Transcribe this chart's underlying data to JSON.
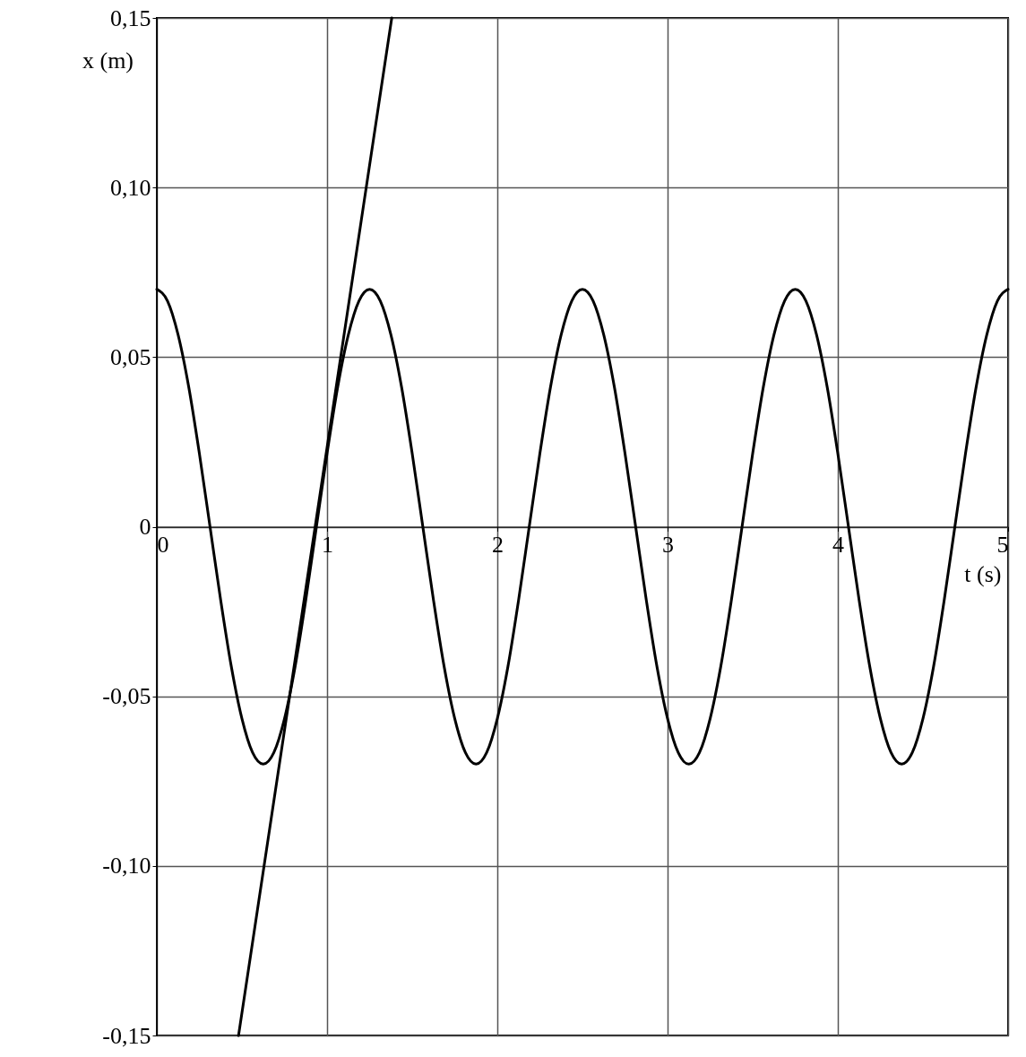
{
  "chart_data": {
    "type": "line",
    "xlabel": "t (s)",
    "ylabel": "x (m)",
    "xlim": [
      0,
      5
    ],
    "ylim": [
      -0.15,
      0.15
    ],
    "xticks": [
      0,
      1,
      2,
      3,
      4,
      5
    ],
    "yticks": [
      {
        "value": -0.15,
        "label": "-0,15"
      },
      {
        "value": -0.1,
        "label": "-0,10"
      },
      {
        "value": -0.05,
        "label": "-0,05"
      },
      0,
      {
        "value": 0.05,
        "label": "0,05"
      },
      {
        "value": 0.1,
        "label": "0,10"
      },
      {
        "value": 0.15,
        "label": "0,15"
      }
    ],
    "grid": true,
    "marker": "none",
    "line_style": "solid",
    "series": [
      {
        "color": "#000000",
        "x": [
          0,
          0.0625,
          0.125,
          0.1875,
          0.25,
          0.3125,
          0.375,
          0.4375,
          0.5,
          0.5625,
          0.625,
          0.6875,
          0.75,
          0.8125,
          0.875,
          0.9375,
          1,
          1.0625,
          1.125,
          1.1875,
          1.25,
          1.3125,
          1.375,
          1.4375,
          1.5,
          1.5625,
          1.625,
          1.6875,
          1.75,
          1.8125,
          1.875,
          1.9375,
          2,
          2.0625,
          2.125,
          2.1875,
          2.25,
          2.3125,
          2.375,
          2.4375,
          2.5,
          2.5625,
          2.625,
          2.6875,
          2.75,
          2.8125,
          2.875,
          2.9375,
          3,
          3.0625,
          3.125,
          3.1875,
          3.25,
          3.3125,
          3.375,
          3.4375,
          3.5,
          3.5625,
          3.625,
          3.6875,
          3.75,
          3.8125,
          3.875,
          3.9375,
          4,
          4.0625,
          4.125,
          4.1875,
          4.25,
          4.3125,
          4.375,
          4.4375,
          4.5,
          4.5625,
          4.625,
          4.6875,
          4.75,
          4.8125,
          4.875,
          4.9375,
          5
        ],
        "values": [
          0.07,
          0.0666,
          0.0566,
          0.0412,
          0.0216,
          0,
          -0.0216,
          -0.0412,
          -0.0566,
          -0.0666,
          -0.07,
          -0.0666,
          -0.0566,
          -0.0412,
          -0.0216,
          0,
          0.0216,
          0.0412,
          0.0566,
          0.0666,
          0.07,
          0.0666,
          0.0566,
          0.0412,
          0.0216,
          0,
          -0.0216,
          -0.0412,
          -0.0566,
          -0.0666,
          -0.07,
          -0.0666,
          -0.0566,
          -0.0412,
          -0.0216,
          0,
          0.0216,
          0.0412,
          0.0566,
          0.0666,
          0.07,
          0.0666,
          0.0566,
          0.0412,
          0.0216,
          0,
          -0.0216,
          -0.0412,
          -0.0566,
          -0.0666,
          -0.07,
          -0.0666,
          -0.0566,
          -0.0412,
          -0.0216,
          0,
          0.0216,
          0.0412,
          0.0566,
          0.0666,
          0.07,
          0.0666,
          0.0566,
          0.0412,
          0.0216,
          0,
          -0.0216,
          -0.0412,
          -0.0566,
          -0.0666,
          -0.07,
          -0.0666,
          -0.0566,
          -0.0412,
          -0.0216,
          0,
          0.0216,
          0.0412,
          0.0566,
          0.0666,
          0.07
        ]
      },
      {
        "type": "line",
        "color": "#000000",
        "x": [
          0.48,
          1.38
        ],
        "values": [
          -0.15,
          0.15
        ]
      }
    ]
  }
}
